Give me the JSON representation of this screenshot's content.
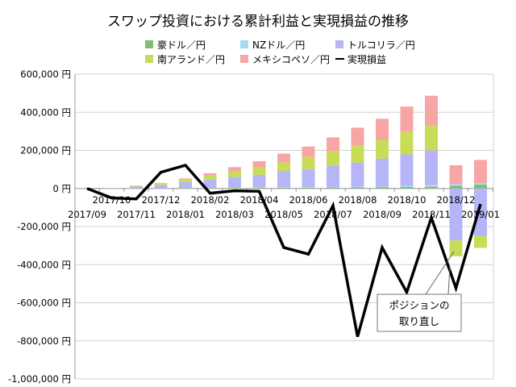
{
  "chart_data": {
    "type": "bar",
    "title": "スワップ投資における累計利益と実現損益の推移",
    "categories": [
      "2017/09",
      "2017/10",
      "2017/11",
      "2017/12",
      "2018/01",
      "2018/02",
      "2018/03",
      "2018/04",
      "2018/05",
      "2018/06",
      "2018/07",
      "2018/08",
      "2018/09",
      "2018/10",
      "2018/11",
      "2018/12",
      "2019/01"
    ],
    "stacked": true,
    "series": [
      {
        "name": "豪ドル／円",
        "type": "bar",
        "color": "#80c06c",
        "values": [
          0,
          0,
          0,
          0,
          1000,
          1000,
          3000,
          4000,
          4000,
          4000,
          5000,
          6000,
          7000,
          8000,
          9000,
          15000,
          20000
        ]
      },
      {
        "name": "NZドル／円",
        "type": "bar",
        "color": "#a6d9f2",
        "values": [
          0,
          0,
          0,
          0,
          0,
          0,
          2000,
          2000,
          2000,
          3000,
          3000,
          4000,
          4000,
          6000,
          10000,
          8000,
          8000
        ]
      },
      {
        "name": "トルコリラ／円",
        "type": "bar",
        "color": "#b5b5f7",
        "values": [
          0,
          1000,
          10000,
          17000,
          32000,
          45000,
          55000,
          65000,
          84000,
          95000,
          112000,
          126000,
          146000,
          165000,
          181000,
          -273000,
          -250000
        ]
      },
      {
        "name": "南アランド／円",
        "type": "bar",
        "color": "#c8dc58",
        "values": [
          0,
          2000,
          5000,
          10000,
          17000,
          22000,
          30000,
          40000,
          48000,
          63000,
          75000,
          90000,
          98000,
          119000,
          130000,
          -83000,
          -62000
        ]
      },
      {
        "name": "メキシコペソ／円",
        "type": "bar",
        "color": "#f7a5a5",
        "values": [
          0,
          0,
          0,
          2000,
          3000,
          12000,
          22000,
          32000,
          45000,
          55000,
          73000,
          93000,
          111000,
          132000,
          157000,
          99000,
          122000
        ]
      },
      {
        "name": "実現損益",
        "type": "line",
        "color": "#000000",
        "values": [
          0,
          -50000,
          -55000,
          85000,
          122000,
          -25000,
          -12000,
          -15000,
          -310000,
          -345000,
          -90000,
          -778000,
          -310000,
          -545000,
          -153000,
          -523000,
          -82000
        ]
      }
    ],
    "yticks": [
      "600,000 円",
      "400,000 円",
      "200,000 円",
      "0 円",
      "-200,000 円",
      "-400,000 円",
      "-600,000 円",
      "-800,000 円",
      "-1,000,000 円"
    ],
    "ylim": [
      -1000000,
      600000
    ],
    "grid": true,
    "legend_position": "top",
    "annotation": {
      "lines": [
        "ポジションの",
        "取り直し"
      ],
      "target": "2018/12"
    }
  }
}
